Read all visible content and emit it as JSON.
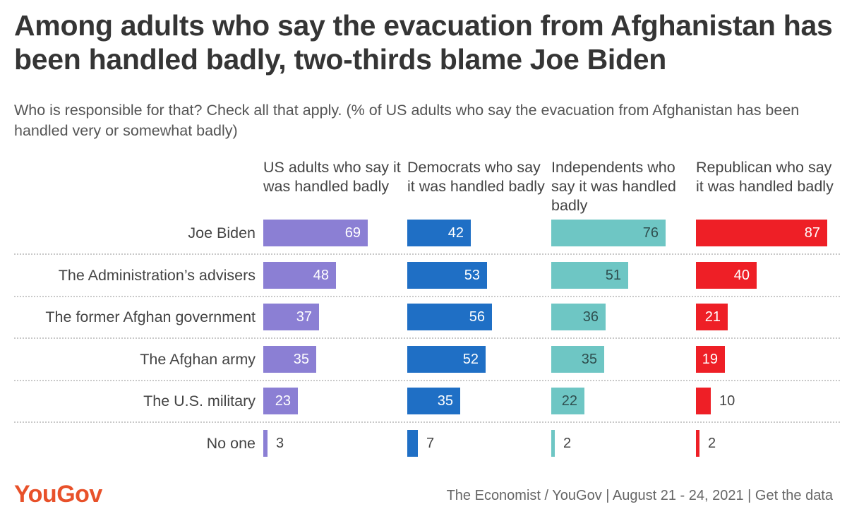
{
  "title": "Among adults who say the evacuation from Afghanistan has been handled badly, two-thirds blame Joe Biden",
  "subtitle": "Who is responsible for that? Check all that apply. (% of US adults who say the evacuation from Afghanistan has been handled very or somewhat badly)",
  "logo": "YouGov",
  "source": "The Economist / YouGov | August 21 - 24, 2021 | Get the data",
  "colors": {
    "us_adults": "#8b7fd4",
    "democrats": "#1f6fc5",
    "independents": "#6ec6c4",
    "republicans": "#ee1f26",
    "logo": "#e8512a"
  },
  "chart_data": {
    "type": "bar",
    "orientation": "horizontal",
    "title": "Among adults who say the evacuation from Afghanistan has been handled badly, two-thirds blame Joe Biden",
    "categories": [
      "Joe Biden",
      "The Administration’s advisers",
      "The former Afghan government",
      "The Afghan army",
      "The U.S. military",
      "No one"
    ],
    "series": [
      {
        "name": "US adults who say it was handled badly",
        "color": "#8b7fd4",
        "values": [
          69,
          48,
          37,
          35,
          23,
          3
        ]
      },
      {
        "name": "Democrats who say it was handled badly",
        "color": "#1f6fc5",
        "values": [
          42,
          53,
          56,
          52,
          35,
          7
        ]
      },
      {
        "name": "Independents who say it was handled badly",
        "color": "#6ec6c4",
        "values": [
          76,
          51,
          36,
          35,
          22,
          2
        ]
      },
      {
        "name": "Republican who say it was handled badly",
        "color": "#ee1f26",
        "values": [
          87,
          40,
          21,
          19,
          10,
          2
        ]
      }
    ],
    "xlim": [
      0,
      87
    ],
    "unit": "%"
  }
}
